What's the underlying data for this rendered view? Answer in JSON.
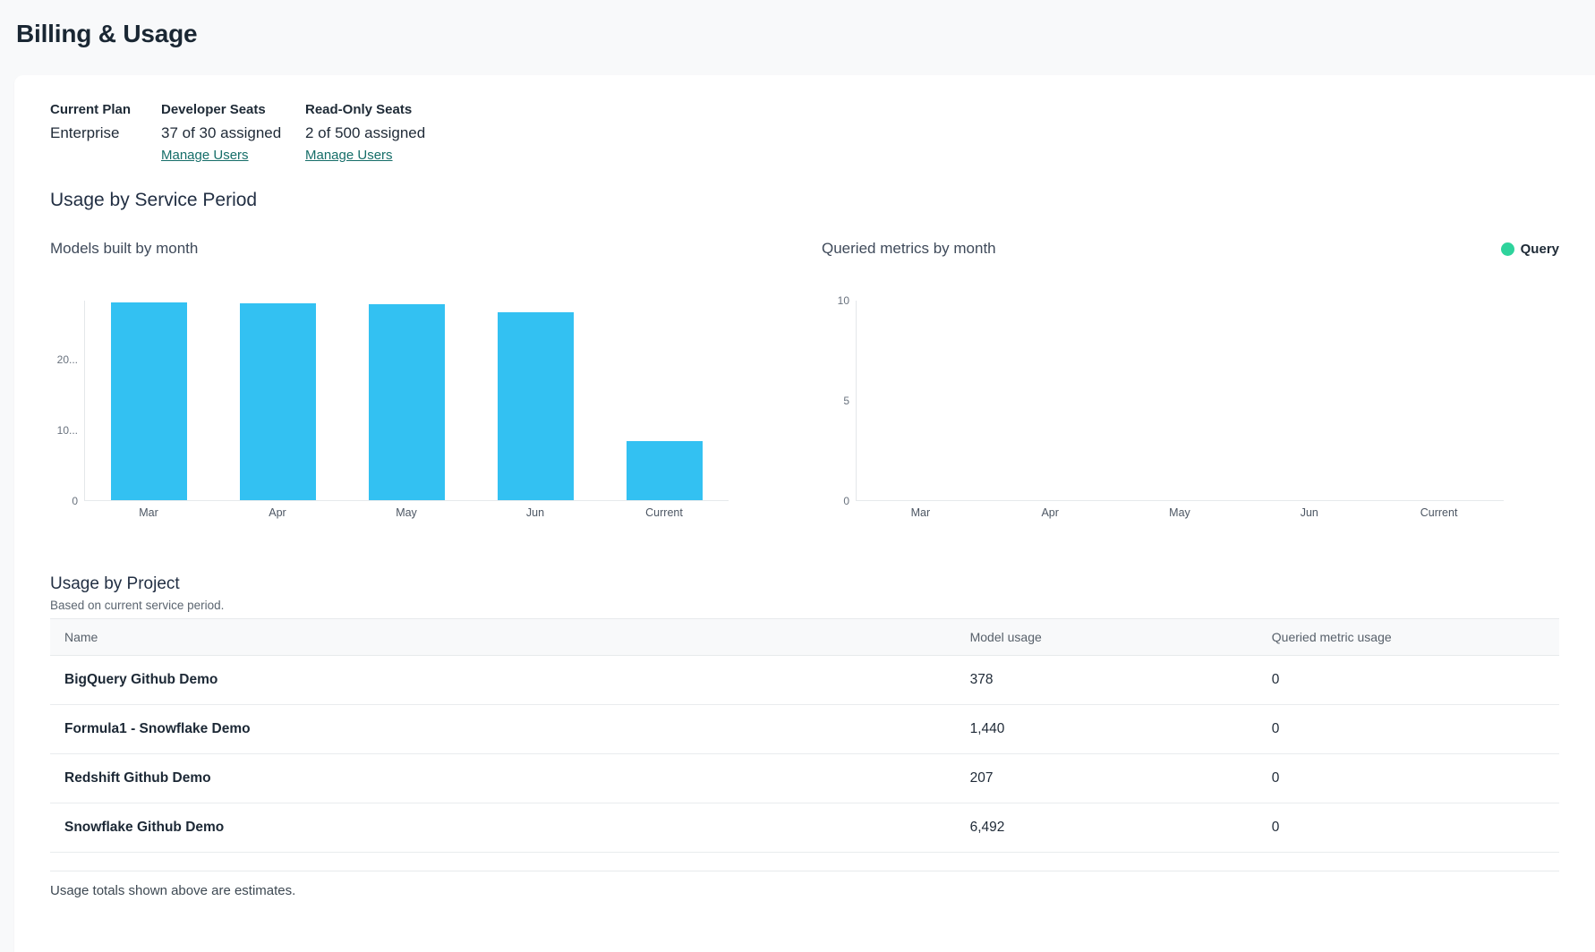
{
  "page": {
    "title": "Billing & Usage"
  },
  "plan": {
    "columns": [
      {
        "label": "Current Plan",
        "value": "Enterprise"
      },
      {
        "label": "Developer Seats",
        "value": "37 of 30 assigned",
        "link": "Manage Users"
      },
      {
        "label": "Read-Only Seats",
        "value": "2 of 500 assigned",
        "link": "Manage Users"
      }
    ]
  },
  "usage_section": {
    "heading": "Usage by Service Period"
  },
  "chart_data": [
    {
      "type": "bar",
      "title": "Models built by month",
      "categories": [
        "Mar",
        "Apr",
        "May",
        "Jun",
        "Current"
      ],
      "values": [
        28000,
        27900,
        27800,
        26700,
        8400
      ],
      "xlabel": "",
      "ylabel": "",
      "ylim": [
        0,
        28300
      ],
      "yticks": [
        {
          "label": "20...",
          "value": 20000
        },
        {
          "label": "10...",
          "value": 10000
        },
        {
          "label": "0",
          "value": 0
        }
      ],
      "grid": false,
      "bar_color": "#33c1f2"
    },
    {
      "type": "bar",
      "title": "Queried metrics by month",
      "categories": [
        "Mar",
        "Apr",
        "May",
        "Jun",
        "Current"
      ],
      "values": [
        0,
        0,
        0,
        0,
        0
      ],
      "xlabel": "",
      "ylabel": "",
      "ylim": [
        0,
        10
      ],
      "yticks": [
        {
          "label": "10",
          "value": 10
        },
        {
          "label": "5",
          "value": 5
        },
        {
          "label": "0",
          "value": 0
        }
      ],
      "grid": false,
      "legend_position": "top-right",
      "legend": [
        {
          "label": "Query",
          "color": "#2ed39c"
        }
      ]
    }
  ],
  "project_table": {
    "heading": "Usage by Project",
    "subheading": "Based on current service period.",
    "columns": [
      "Name",
      "Model usage",
      "Queried metric usage"
    ],
    "rows": [
      {
        "name": "BigQuery Github Demo",
        "model_usage": "378",
        "queried_metric_usage": "0"
      },
      {
        "name": "Formula1 - Snowflake Demo",
        "model_usage": "1,440",
        "queried_metric_usage": "0"
      },
      {
        "name": "Redshift Github Demo",
        "model_usage": "207",
        "queried_metric_usage": "0"
      },
      {
        "name": "Snowflake Github Demo",
        "model_usage": "6,492",
        "queried_metric_usage": "0"
      }
    ],
    "footnote": "Usage totals shown above are estimates."
  },
  "colors": {
    "bar_blue": "#33c1f2",
    "legend_green": "#2ed39c",
    "link_teal": "#166e69",
    "page_background": "#f8f9fa",
    "card_background": "#ffffff"
  }
}
